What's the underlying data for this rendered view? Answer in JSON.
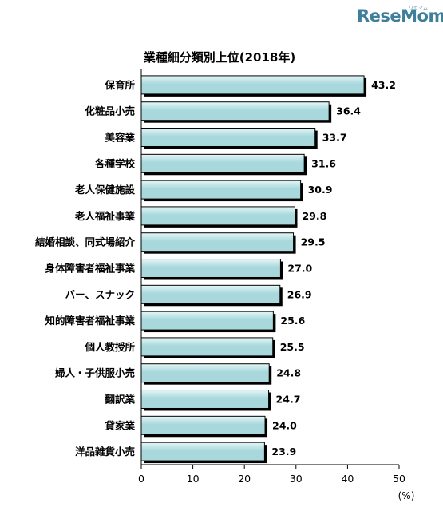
{
  "watermark": "ReseMom",
  "watermark_sub": "リセマム",
  "chart_data": {
    "type": "bar",
    "orientation": "horizontal",
    "title": "業種細分類別上位(2018年)",
    "categories": [
      "保育所",
      "化粧品小売",
      "美容業",
      "各種学校",
      "老人保健施設",
      "老人福祉事業",
      "結婚相談、同式場紹介",
      "身体障害者福祉事業",
      "バー、スナック",
      "知的障害者福祉事業",
      "個人教授所",
      "婦人・子供服小売",
      "翻訳業",
      "貸家業",
      "洋品雑貨小売"
    ],
    "values": [
      43.2,
      36.4,
      33.7,
      31.6,
      30.9,
      29.8,
      29.5,
      27.0,
      26.9,
      25.6,
      25.5,
      24.8,
      24.7,
      24.0,
      23.9
    ],
    "value_labels": [
      "43.2",
      "36.4",
      "33.7",
      "31.6",
      "30.9",
      "29.8",
      "29.5",
      "27.0",
      "26.9",
      "25.6",
      "25.5",
      "24.8",
      "24.7",
      "24.0",
      "23.9"
    ],
    "xlim": [
      0,
      50
    ],
    "xticks": [
      "0",
      "10",
      "20",
      "30",
      "40",
      "50"
    ],
    "xunit": "(%)",
    "grid": false,
    "colors": {
      "bar_fill": "#a8d8dc",
      "bar_highlight": "#e4f6f7",
      "bar_stroke": "#000000"
    }
  }
}
